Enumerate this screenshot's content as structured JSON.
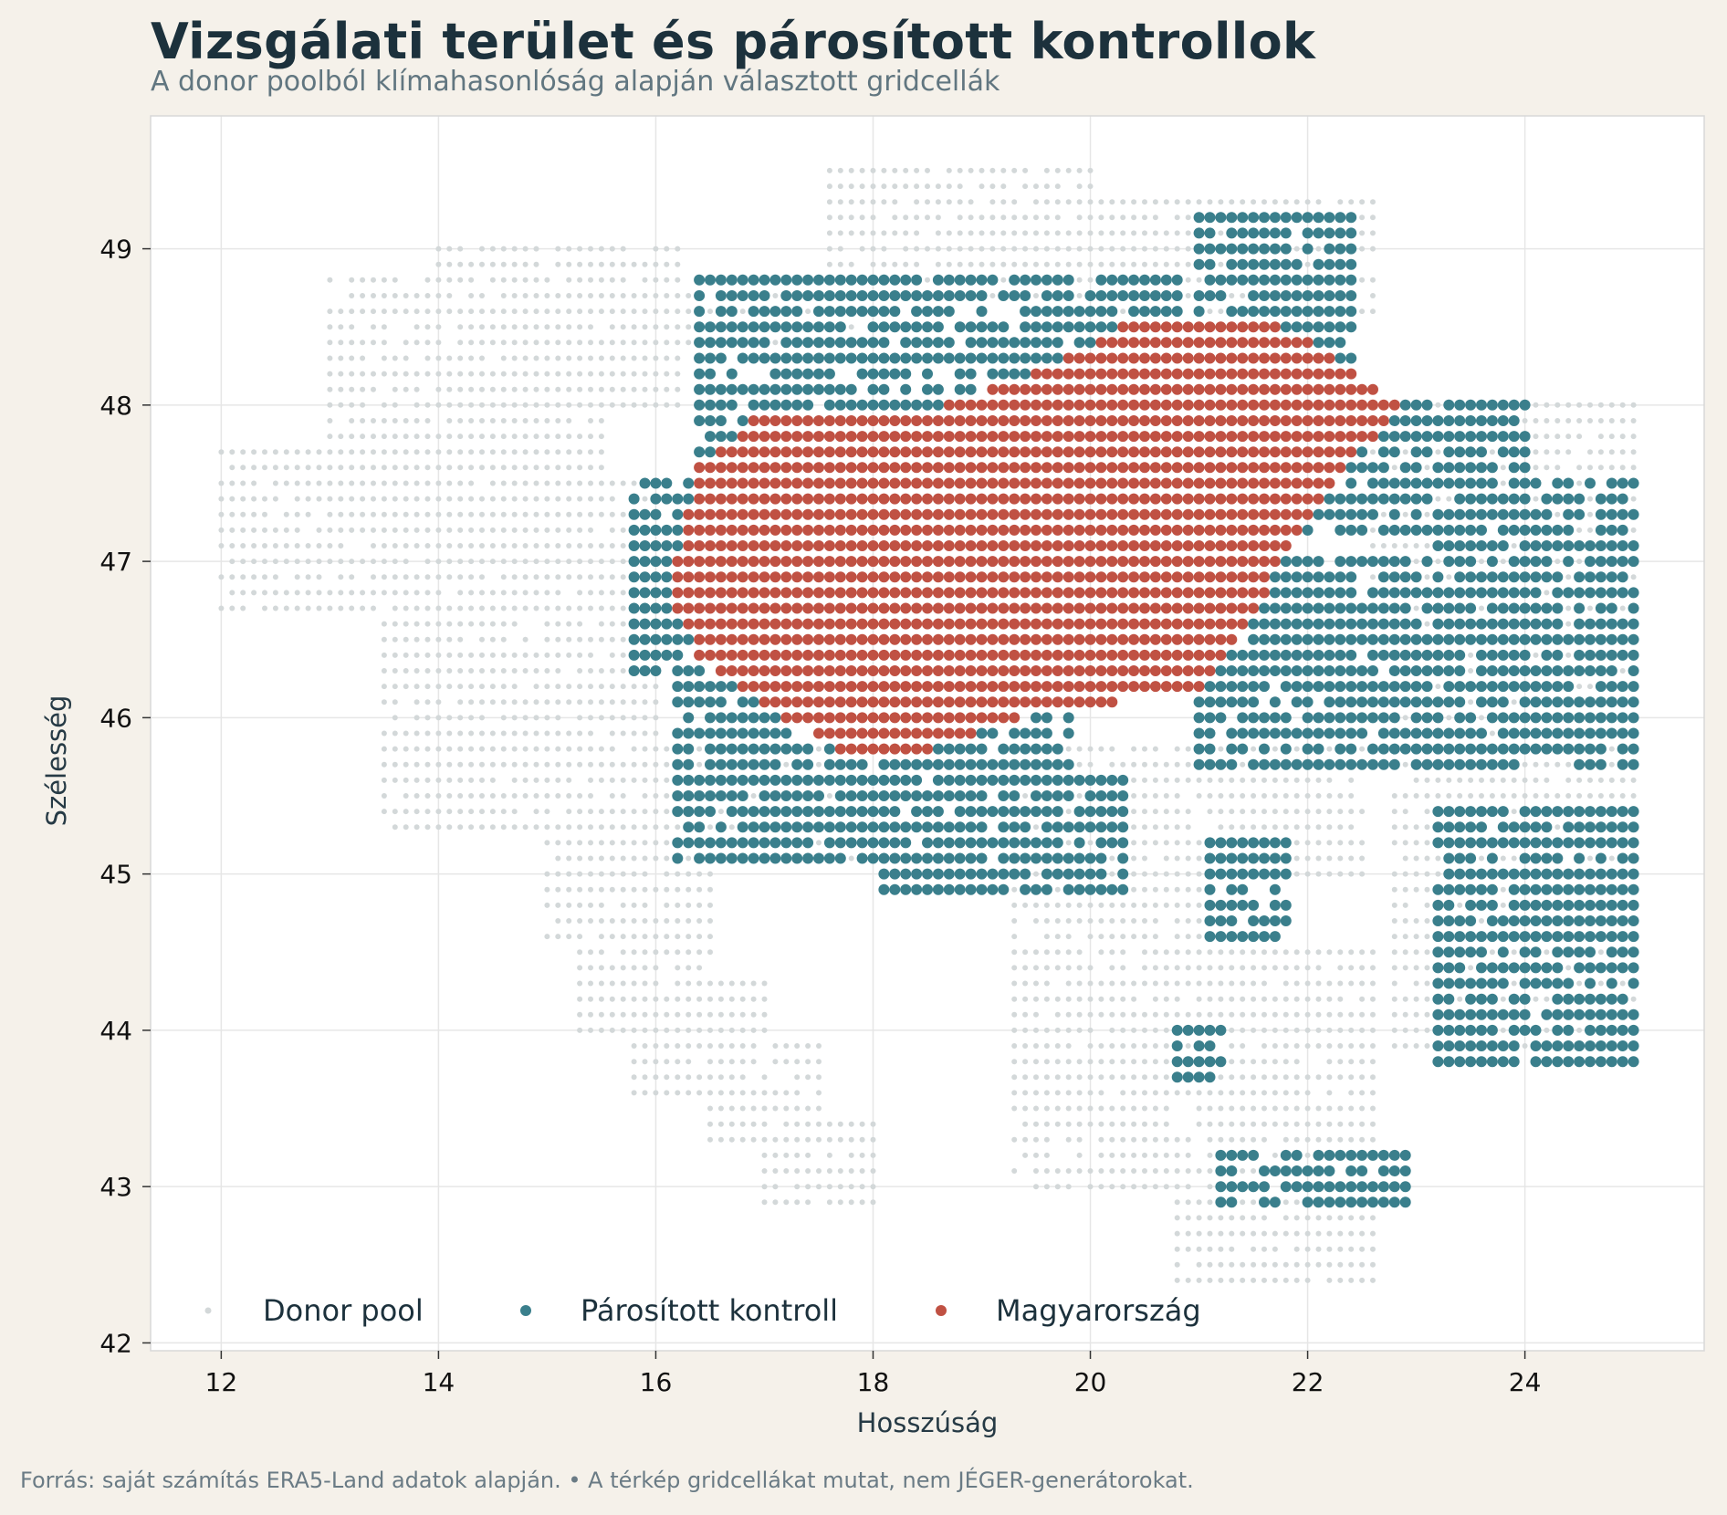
{
  "title": "Vizsgálati terület és párosított kontrollok",
  "subtitle": "A donor poolból klímahasonlóság alapján választott gridcellák",
  "footer": "Forrás: saját számítás ERA5-Land adatok alapján.  •  A térkép gridcellákat mutat, nem JÉGER-generátorokat.",
  "colors": {
    "background": "#f5f1ea",
    "plot_background": "#ffffff",
    "donor": "#d3d8d9",
    "control": "#3a7f8c",
    "hungary": "#c05143",
    "grid": "#e6e6e6"
  },
  "chart_data": {
    "type": "scatter",
    "xlabel": "Hosszúság",
    "ylabel": "Szélesség",
    "xlim": [
      11.35,
      25.65
    ],
    "ylim": [
      41.95,
      49.85
    ],
    "xticks": [
      12,
      14,
      16,
      18,
      20,
      22,
      24
    ],
    "yticks": [
      42,
      43,
      44,
      45,
      46,
      47,
      48,
      49
    ],
    "grid": true,
    "grid_step_deg": 0.1,
    "legend_position": "bottom-left",
    "series": [
      {
        "name": "Donor pool",
        "color": "#d3d8d9",
        "regions": [
          [
            12.0,
            13.9,
            46.7,
            47.7
          ],
          [
            13.0,
            15.5,
            47.3,
            48.8
          ],
          [
            14.0,
            16.2,
            48.0,
            49.0
          ],
          [
            13.5,
            16.0,
            45.3,
            47.5
          ],
          [
            15.0,
            16.2,
            44.6,
            45.8
          ],
          [
            15.3,
            16.5,
            44.0,
            45.0
          ],
          [
            15.8,
            17.0,
            43.6,
            44.3
          ],
          [
            16.5,
            17.5,
            43.3,
            43.9
          ],
          [
            17.0,
            18.0,
            42.9,
            43.4
          ],
          [
            16.3,
            17.8,
            48.4,
            48.8
          ],
          [
            17.6,
            20.0,
            48.7,
            49.5
          ],
          [
            20.0,
            22.6,
            48.6,
            49.3
          ],
          [
            22.6,
            25.0,
            46.8,
            48.0
          ],
          [
            22.8,
            25.0,
            45.0,
            46.8
          ],
          [
            22.8,
            25.0,
            43.9,
            45.0
          ],
          [
            19.3,
            21.0,
            43.0,
            45.0
          ],
          [
            20.8,
            22.6,
            42.4,
            44.5
          ],
          [
            19.2,
            22.5,
            45.0,
            45.8
          ],
          [
            16.0,
            17.8,
            45.1,
            45.8
          ]
        ]
      },
      {
        "name": "Párosított kontroll",
        "color": "#3a7f8c",
        "regions": [
          [
            16.2,
            19.8,
            45.1,
            46.3
          ],
          [
            18.0,
            20.3,
            44.9,
            45.6
          ],
          [
            16.4,
            20.8,
            47.7,
            48.8
          ],
          [
            21.0,
            22.4,
            48.3,
            49.2
          ],
          [
            15.8,
            16.8,
            46.3,
            47.5
          ],
          [
            21.5,
            23.2,
            45.7,
            47.0
          ],
          [
            22.0,
            24.0,
            47.2,
            48.0
          ],
          [
            21.0,
            25.0,
            45.7,
            46.4
          ],
          [
            23.2,
            25.0,
            46.0,
            47.5
          ],
          [
            23.2,
            25.0,
            44.9,
            45.4
          ],
          [
            23.2,
            25.0,
            43.8,
            44.8
          ],
          [
            21.1,
            21.8,
            44.6,
            45.2
          ],
          [
            20.8,
            21.2,
            43.7,
            44.0
          ],
          [
            21.2,
            22.9,
            42.9,
            43.2
          ]
        ]
      },
      {
        "name": "Magyarország",
        "color": "#c05143",
        "regions": [
          [
            16.1,
            22.9,
            45.75,
            48.55
          ]
        ],
        "outline": [
          [
            16.1,
            46.8
          ],
          [
            16.4,
            47.6
          ],
          [
            17.0,
            48.0
          ],
          [
            17.8,
            48.0
          ],
          [
            18.7,
            48.0
          ],
          [
            19.6,
            48.25
          ],
          [
            20.4,
            48.55
          ],
          [
            21.6,
            48.55
          ],
          [
            22.1,
            48.4
          ],
          [
            22.9,
            48.0
          ],
          [
            22.5,
            47.7
          ],
          [
            22.0,
            47.3
          ],
          [
            21.6,
            46.8
          ],
          [
            21.1,
            46.2
          ],
          [
            20.3,
            46.1
          ],
          [
            19.5,
            46.05
          ],
          [
            18.5,
            45.8
          ],
          [
            17.7,
            45.78
          ],
          [
            17.2,
            46.0
          ],
          [
            16.8,
            46.2
          ],
          [
            16.4,
            46.4
          ]
        ]
      }
    ]
  }
}
